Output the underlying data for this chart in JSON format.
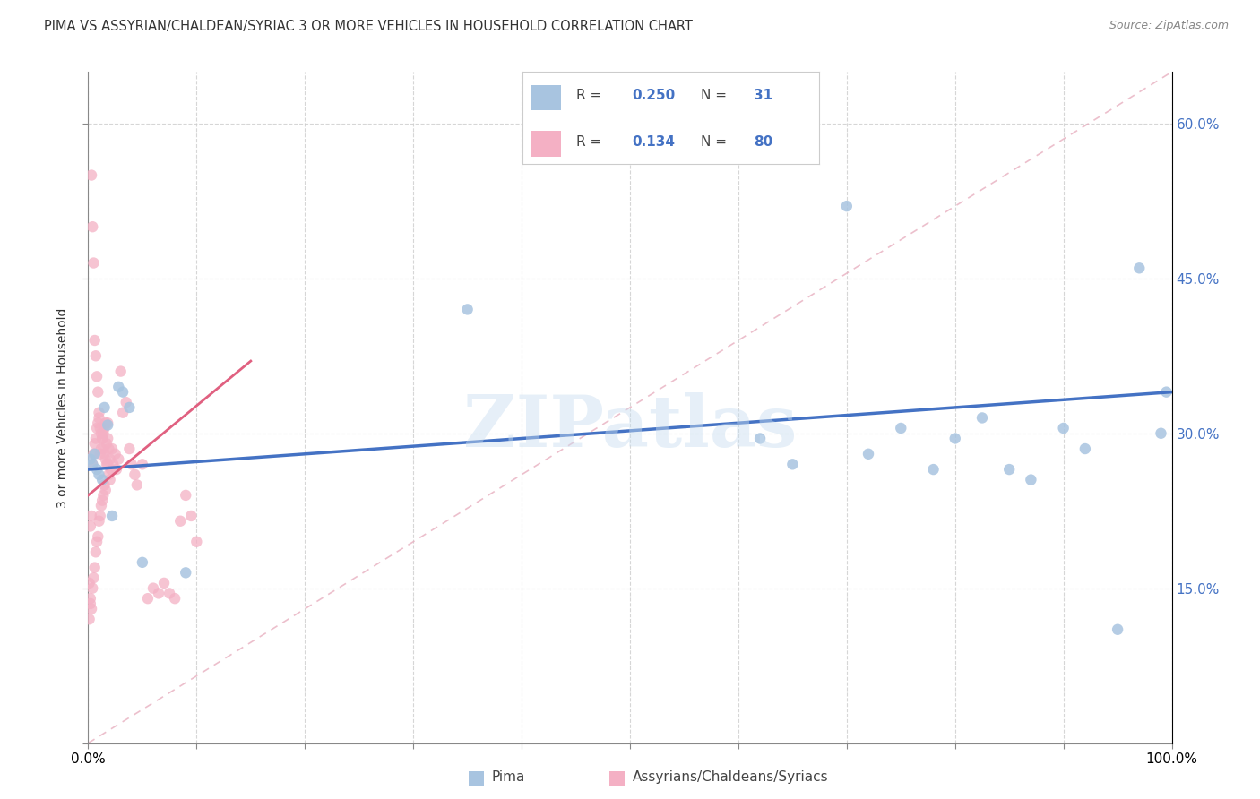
{
  "title": "PIMA VS ASSYRIAN/CHALDEAN/SYRIAC 3 OR MORE VEHICLES IN HOUSEHOLD CORRELATION CHART",
  "source": "Source: ZipAtlas.com",
  "ylabel": "3 or more Vehicles in Household",
  "xlim": [
    0.0,
    1.0
  ],
  "ylim": [
    0.0,
    0.65
  ],
  "xtick_positions": [
    0.0,
    0.1,
    0.2,
    0.3,
    0.4,
    0.5,
    0.6,
    0.7,
    0.8,
    0.9,
    1.0
  ],
  "xticklabels": [
    "0.0%",
    "",
    "",
    "",
    "",
    "",
    "",
    "",
    "",
    "",
    "100.0%"
  ],
  "ytick_positions": [
    0.0,
    0.15,
    0.3,
    0.45,
    0.6
  ],
  "yticklabels_right": [
    "",
    "15.0%",
    "30.0%",
    "45.0%",
    "60.0%"
  ],
  "watermark": "ZIPatlas",
  "color_pima_scatter": "#a8c4e0",
  "color_assyrian_scatter": "#f4b0c4",
  "color_pima_line": "#4472c4",
  "color_assyrian_line": "#e07090",
  "color_diagonal": "#e8b0c0",
  "background_color": "#ffffff",
  "grid_color": "#cccccc",
  "pima_x": [
    0.002,
    0.004,
    0.006,
    0.008,
    0.01,
    0.013,
    0.015,
    0.018,
    0.022,
    0.028,
    0.032,
    0.038,
    0.05,
    0.09,
    0.35,
    0.62,
    0.65,
    0.7,
    0.72,
    0.75,
    0.78,
    0.8,
    0.825,
    0.85,
    0.87,
    0.9,
    0.92,
    0.95,
    0.97,
    0.99,
    0.995
  ],
  "pima_y": [
    0.275,
    0.27,
    0.28,
    0.265,
    0.26,
    0.255,
    0.325,
    0.308,
    0.22,
    0.345,
    0.34,
    0.325,
    0.175,
    0.165,
    0.42,
    0.295,
    0.27,
    0.52,
    0.28,
    0.305,
    0.265,
    0.295,
    0.315,
    0.265,
    0.255,
    0.305,
    0.285,
    0.11,
    0.46,
    0.3,
    0.34
  ],
  "assyrian_x": [
    0.001,
    0.002,
    0.002,
    0.003,
    0.003,
    0.004,
    0.004,
    0.005,
    0.005,
    0.006,
    0.006,
    0.007,
    0.007,
    0.008,
    0.008,
    0.009,
    0.009,
    0.01,
    0.01,
    0.011,
    0.011,
    0.012,
    0.012,
    0.013,
    0.013,
    0.014,
    0.014,
    0.015,
    0.015,
    0.016,
    0.016,
    0.017,
    0.018,
    0.018,
    0.019,
    0.02,
    0.021,
    0.022,
    0.023,
    0.025,
    0.026,
    0.028,
    0.03,
    0.032,
    0.035,
    0.038,
    0.04,
    0.043,
    0.045,
    0.05,
    0.055,
    0.06,
    0.065,
    0.07,
    0.075,
    0.08,
    0.085,
    0.09,
    0.095,
    0.1,
    0.001,
    0.002,
    0.003,
    0.004,
    0.005,
    0.006,
    0.007,
    0.008,
    0.009,
    0.01,
    0.011,
    0.012,
    0.013,
    0.014,
    0.015,
    0.016,
    0.017,
    0.018,
    0.019,
    0.02
  ],
  "assyrian_y": [
    0.12,
    0.14,
    0.21,
    0.13,
    0.22,
    0.15,
    0.27,
    0.16,
    0.28,
    0.17,
    0.29,
    0.185,
    0.295,
    0.195,
    0.305,
    0.2,
    0.31,
    0.215,
    0.315,
    0.22,
    0.28,
    0.23,
    0.285,
    0.235,
    0.295,
    0.24,
    0.3,
    0.25,
    0.305,
    0.245,
    0.31,
    0.29,
    0.295,
    0.31,
    0.285,
    0.275,
    0.265,
    0.285,
    0.27,
    0.28,
    0.265,
    0.275,
    0.36,
    0.32,
    0.33,
    0.285,
    0.27,
    0.26,
    0.25,
    0.27,
    0.14,
    0.15,
    0.145,
    0.155,
    0.145,
    0.14,
    0.215,
    0.24,
    0.22,
    0.195,
    0.155,
    0.135,
    0.55,
    0.5,
    0.465,
    0.39,
    0.375,
    0.355,
    0.34,
    0.32,
    0.305,
    0.3,
    0.295,
    0.285,
    0.28,
    0.275,
    0.27,
    0.27,
    0.26,
    0.255
  ],
  "legend_r1": "0.250",
  "legend_n1": "31",
  "legend_r2": "0.134",
  "legend_n2": "80"
}
